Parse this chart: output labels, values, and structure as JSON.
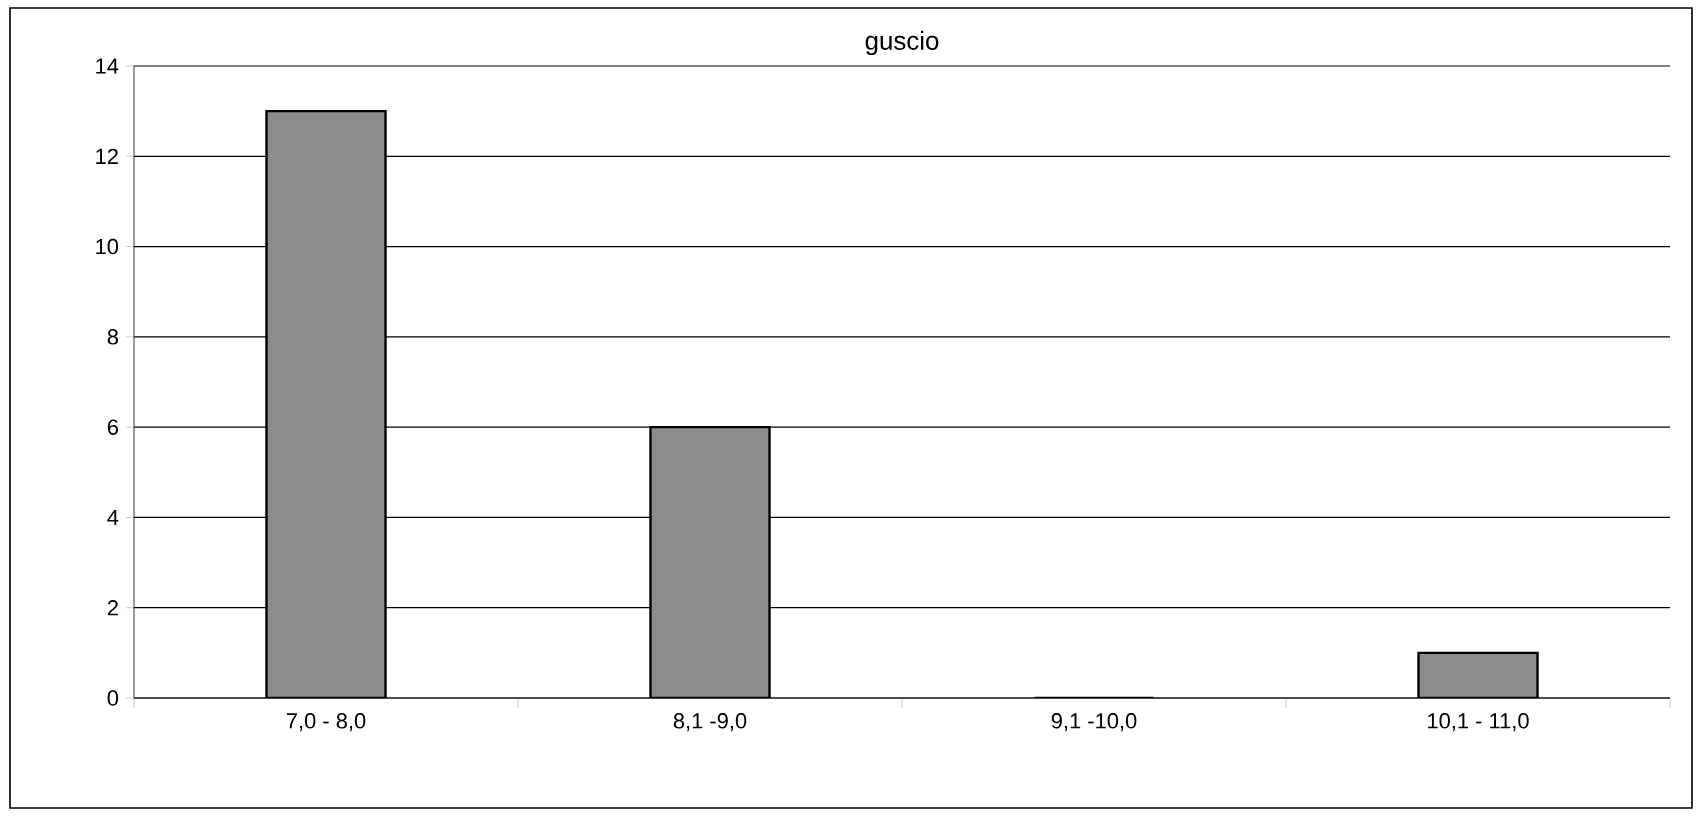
{
  "chart_data": {
    "type": "bar",
    "title": "guscio",
    "categories": [
      "7,0 - 8,0",
      "8,1 -9,0",
      "9,1 -10,0",
      "10,1 - 11,0"
    ],
    "values": [
      13,
      6,
      0,
      1
    ],
    "color": "#8c8c8c",
    "ylim": [
      0,
      14
    ],
    "yticks": [
      0,
      2,
      4,
      6,
      8,
      10,
      12,
      14
    ],
    "grid": "y"
  }
}
